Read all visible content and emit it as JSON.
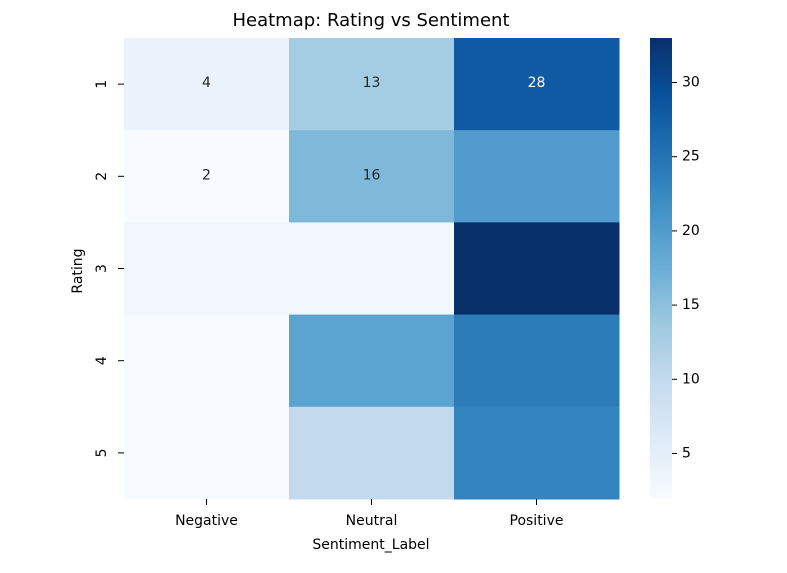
{
  "chart_data": {
    "type": "heatmap",
    "title": "Heatmap: Rating vs Sentiment",
    "xlabel": "Sentiment_Label",
    "ylabel": "Rating",
    "x_categories": [
      "Negative",
      "Neutral",
      "Positive"
    ],
    "y_categories": [
      "1",
      "2",
      "3",
      "4",
      "5"
    ],
    "values": [
      [
        4,
        13,
        28
      ],
      [
        2,
        16,
        20
      ],
      [
        3,
        3,
        33
      ],
      [
        2,
        19,
        24
      ],
      [
        2,
        10,
        23
      ]
    ],
    "annotations": [
      [
        "4",
        "13",
        "28"
      ],
      [
        "2",
        "16",
        ""
      ],
      [
        "",
        "",
        ""
      ],
      [
        "",
        "",
        ""
      ],
      [
        "",
        "",
        ""
      ]
    ],
    "colorbar": {
      "vmin": 2,
      "vmax": 33,
      "ticks": [
        5,
        10,
        15,
        20,
        25,
        30
      ]
    },
    "colormap": "Blues",
    "colormap_stops": [
      "#f7fbff",
      "#deebf7",
      "#c6dbef",
      "#9ecae1",
      "#6baed6",
      "#4292c6",
      "#2171b5",
      "#08519c",
      "#08306b"
    ]
  }
}
